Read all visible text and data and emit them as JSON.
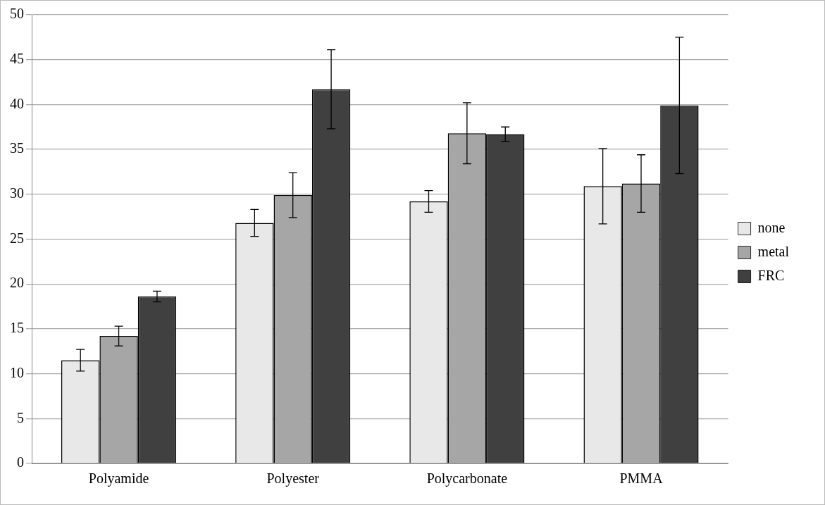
{
  "chart_data": {
    "type": "bar",
    "categories": [
      "Polyamide",
      "Polyester",
      "Polycarbonate",
      "PMMA"
    ],
    "series": [
      {
        "name": "none",
        "color": "#e8e8e8",
        "values": [
          11.5,
          26.8,
          29.2,
          30.9
        ],
        "errors": [
          1.2,
          1.5,
          1.2,
          4.2
        ]
      },
      {
        "name": "metal",
        "color": "#a6a6a6",
        "values": [
          14.2,
          29.9,
          36.8,
          31.2
        ],
        "errors": [
          1.1,
          2.5,
          3.4,
          3.2
        ]
      },
      {
        "name": "FRC",
        "color": "#404040",
        "values": [
          18.6,
          41.7,
          36.7,
          39.9
        ],
        "errors": [
          0.6,
          4.4,
          0.8,
          7.6
        ]
      }
    ],
    "ylim": [
      0,
      50
    ],
    "yticks": [
      0,
      5,
      10,
      15,
      20,
      25,
      30,
      35,
      40,
      45,
      50
    ],
    "grid": "y",
    "legend": "right"
  }
}
